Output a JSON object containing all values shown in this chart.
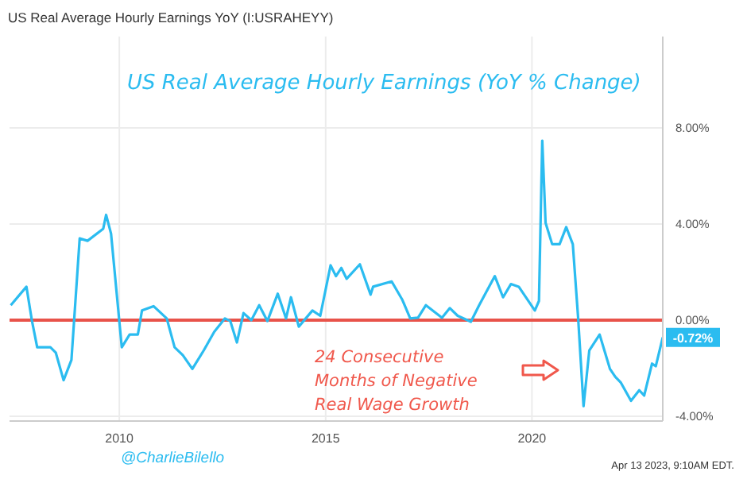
{
  "chart_data": {
    "type": "line",
    "title": "US Real Average Hourly Earnings YoY (I:USRAHEYY)",
    "subtitle": "US Real Average Hourly Earnings (YoY % Change)",
    "x": [
      2007.37,
      2007.75,
      2007.88,
      2008.01,
      2008.33,
      2008.46,
      2008.65,
      2008.84,
      2009.04,
      2009.23,
      2009.61,
      2009.68,
      2009.8,
      2010.06,
      2010.25,
      2010.45,
      2010.55,
      2010.83,
      2011.15,
      2011.34,
      2011.54,
      2011.77,
      2012.05,
      2012.3,
      2012.56,
      2012.69,
      2012.85,
      2013.01,
      2013.2,
      2013.39,
      2013.59,
      2013.84,
      2014.04,
      2014.16,
      2014.35,
      2014.68,
      2014.87,
      2015.12,
      2015.25,
      2015.38,
      2015.51,
      2015.83,
      2016.09,
      2016.15,
      2016.6,
      2016.86,
      2017.05,
      2017.24,
      2017.43,
      2017.82,
      2018.01,
      2018.2,
      2018.52,
      2018.72,
      2019.1,
      2019.3,
      2019.49,
      2019.68,
      2020.07,
      2020.17,
      2020.25,
      2020.33,
      2020.49,
      2020.67,
      2020.83,
      2020.99,
      2021.12,
      2021.25,
      2021.39,
      2021.64,
      2021.89,
      2022.02,
      2022.15,
      2022.4,
      2022.6,
      2022.72,
      2022.91,
      2023.0,
      2023.17
    ],
    "series": [
      {
        "color": "#2bbcf0",
        "values": [
          0.62,
          1.39,
          0.0,
          -1.13,
          -1.13,
          -1.35,
          -2.5,
          -1.66,
          3.4,
          3.3,
          3.8,
          4.38,
          3.6,
          -1.13,
          -0.6,
          -0.6,
          0.4,
          0.58,
          0.07,
          -1.13,
          -1.46,
          -2.03,
          -1.25,
          -0.49,
          0.07,
          -0.04,
          -0.93,
          0.29,
          0.0,
          0.62,
          -0.04,
          1.1,
          0.07,
          0.95,
          -0.27,
          0.4,
          0.18,
          2.28,
          1.83,
          2.17,
          1.72,
          2.32,
          1.06,
          1.39,
          1.61,
          0.84,
          0.07,
          0.1,
          0.62,
          0.1,
          0.5,
          0.18,
          -0.07,
          0.62,
          1.83,
          0.95,
          1.5,
          1.39,
          0.4,
          0.8,
          7.47,
          4.05,
          3.16,
          3.16,
          3.87,
          3.16,
          0.07,
          -3.58,
          -1.26,
          -0.6,
          -2.03,
          -2.36,
          -2.59,
          -3.36,
          -2.92,
          -3.14,
          -1.81,
          -1.92,
          -0.72
        ],
        "value_labels": [
          null,
          null,
          null,
          null,
          null,
          null,
          null,
          null,
          null,
          null,
          null,
          null,
          null,
          null,
          null,
          null,
          null,
          null,
          null,
          null,
          null,
          null,
          null,
          null,
          null,
          null,
          null,
          null,
          null,
          null,
          null,
          null,
          null,
          null,
          null,
          null,
          null,
          null,
          null,
          null,
          null,
          null,
          null,
          null,
          null,
          null,
          null,
          null,
          null,
          null,
          null,
          null,
          null,
          null,
          null,
          null,
          null,
          null,
          null,
          null,
          null,
          null,
          null,
          null,
          null,
          null,
          null,
          null,
          null,
          null,
          null,
          null,
          null,
          null,
          null,
          null,
          null,
          null,
          "-0.72%"
        ]
      }
    ],
    "xlim": [
      2007.34,
      2023.17
    ],
    "xticks": [
      2010,
      2015,
      2020
    ],
    "ylim": [
      -4.2,
      11.8
    ],
    "yticks": [
      {
        "value": -4,
        "label": "-4.00%"
      },
      {
        "value": 0,
        "label": "0.00%"
      },
      {
        "value": 4,
        "label": "4.00%"
      },
      {
        "value": 8,
        "label": "8.00%"
      }
    ],
    "grid": true,
    "marker": "none",
    "line_style": "solid",
    "ref_lines": [
      {
        "axis": "y",
        "value": 0,
        "color": "#e8534a"
      }
    ],
    "annotations": [
      "24 Consecutive Months of Negative Real Wage Growth",
      "@CharlieBilello",
      "Apr 13 2023, 9:10AM EDT."
    ]
  }
}
